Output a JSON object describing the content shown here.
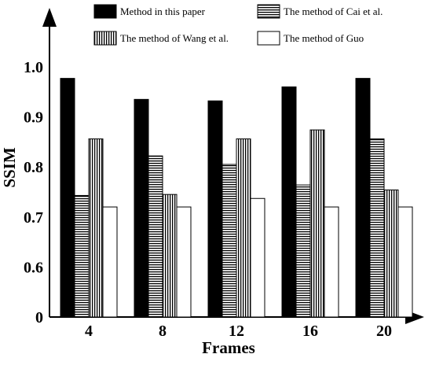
{
  "chart_data": {
    "type": "bar",
    "xlabel": "Frames",
    "ylabel": "SSIM",
    "categories": [
      "4",
      "8",
      "12",
      "16",
      "20"
    ],
    "ylim": [
      0.5,
      1.0
    ],
    "y_axis_break": true,
    "y_ticks": [
      {
        "value": 0.5,
        "label": "0"
      },
      {
        "value": 0.6,
        "label": "0.6"
      },
      {
        "value": 0.7,
        "label": "0.7"
      },
      {
        "value": 0.8,
        "label": "0.8"
      },
      {
        "value": 0.9,
        "label": "0.9"
      },
      {
        "value": 1.0,
        "label": "1.0"
      }
    ],
    "grid": false,
    "legend_position": "top",
    "series": [
      {
        "name": "Method in this paper",
        "pattern": "black",
        "values": [
          0.977,
          0.935,
          0.932,
          0.96,
          0.977
        ]
      },
      {
        "name": "The method of Cai et al.",
        "pattern": "horizontal-stripes",
        "values": [
          0.743,
          0.822,
          0.805,
          0.764,
          0.856
        ]
      },
      {
        "name": "The method of Wang et al.",
        "pattern": "vertical-stripes",
        "values": [
          0.856,
          0.745,
          0.856,
          0.874,
          0.754
        ]
      },
      {
        "name": "The method of Guo",
        "pattern": "white",
        "values": [
          0.72,
          0.72,
          0.737,
          0.72,
          0.72
        ]
      }
    ]
  }
}
